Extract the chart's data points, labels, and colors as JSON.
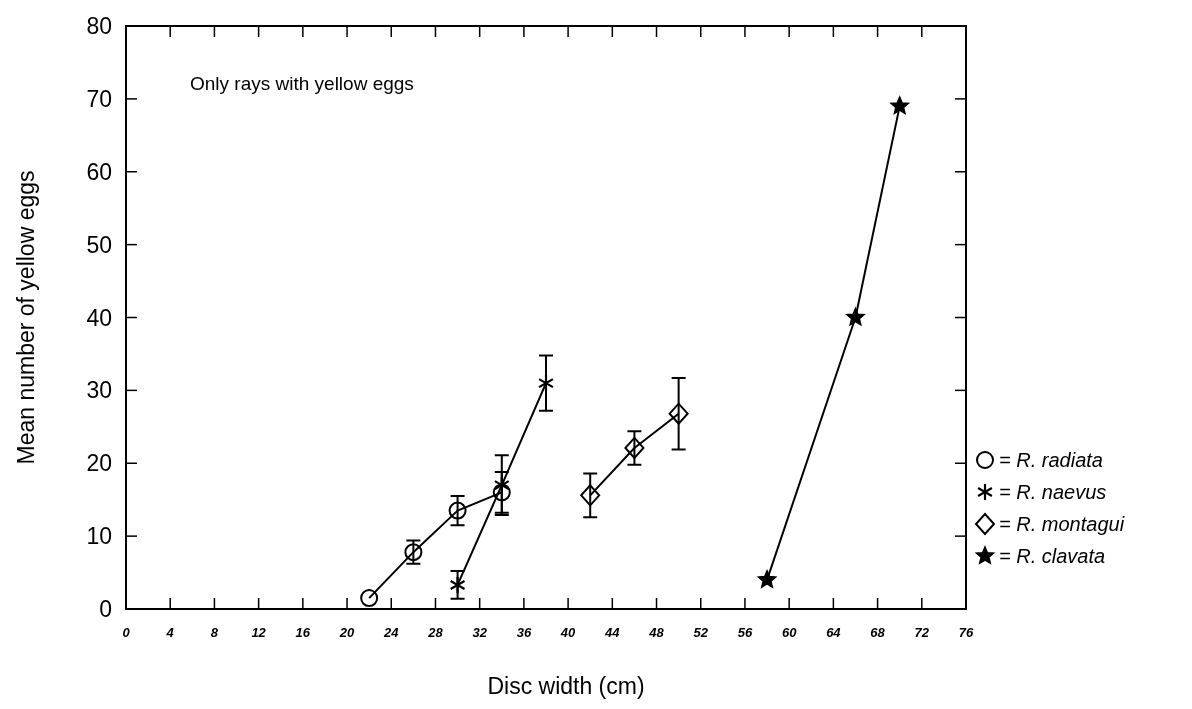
{
  "chart_data": {
    "type": "line",
    "xlabel": "Disc width (cm)",
    "ylabel": "Mean number of yellow eggs",
    "annotations": [
      "Only rays with yellow eggs"
    ],
    "xlim": [
      0,
      76
    ],
    "xticks": [
      0,
      4,
      8,
      12,
      16,
      20,
      24,
      28,
      32,
      36,
      40,
      44,
      48,
      52,
      56,
      60,
      64,
      68,
      72,
      76
    ],
    "ylim": [
      0,
      80
    ],
    "yticks": [
      0,
      10,
      20,
      30,
      40,
      50,
      60,
      70,
      80
    ],
    "legend": "right",
    "grid": false,
    "line_style": "solid",
    "series": [
      {
        "name": "= R. radiata",
        "color": "#000000",
        "marker": "circle",
        "x": [
          22,
          26,
          30,
          34
        ],
        "values": [
          1.5,
          7.8,
          13.5,
          16
        ],
        "errors": [
          null,
          1.6,
          2,
          2.8
        ]
      },
      {
        "name": "= R. naevus",
        "color": "#000000",
        "marker": "cross",
        "x": [
          30,
          34,
          38
        ],
        "values": [
          3.3,
          17,
          31
        ],
        "errors": [
          1.9,
          4.1,
          3.8
        ]
      },
      {
        "name": "= R. montagui",
        "color": "#000000",
        "marker": "diamond",
        "x": [
          42,
          46,
          50
        ],
        "values": [
          15.6,
          22.1,
          26.8
        ],
        "errors": [
          3,
          2.3,
          4.9
        ]
      },
      {
        "name": "= R. clavata",
        "color": "#000000",
        "marker": "star",
        "x": [
          58,
          66,
          70
        ],
        "values": [
          4,
          40,
          69
        ]
      }
    ]
  }
}
